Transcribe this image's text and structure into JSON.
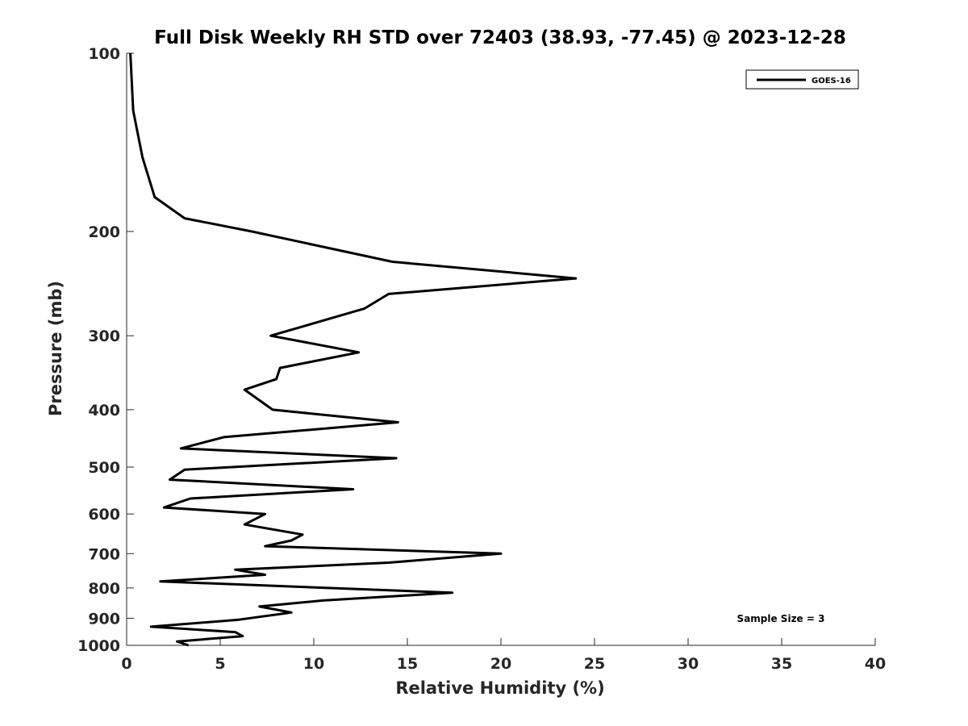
{
  "chart_data": {
    "type": "line",
    "title": "Full Disk Weekly RH STD over 72403 (38.93, -77.45) @ 2023-12-28",
    "xlabel": "Relative Humidity (%)",
    "ylabel": "Pressure (mb)",
    "xlim": [
      0,
      40
    ],
    "ylim": [
      100,
      1000
    ],
    "yscale": "log",
    "grid": false,
    "legend_position": "top-right",
    "x_ticks": [
      0,
      5,
      10,
      15,
      20,
      25,
      30,
      35,
      40
    ],
    "y_ticks": [
      100,
      200,
      300,
      400,
      500,
      600,
      700,
      800,
      900,
      1000
    ],
    "annotation": "Sample Size = 3",
    "series": [
      {
        "name": "GOES-16",
        "color": "#000000",
        "points": [
          [
            0.2,
            100
          ],
          [
            0.35,
            125
          ],
          [
            0.85,
            150
          ],
          [
            1.5,
            175
          ],
          [
            3.1,
            190
          ],
          [
            6.7,
            200
          ],
          [
            14.2,
            225
          ],
          [
            24.0,
            240
          ],
          [
            14.0,
            255
          ],
          [
            12.7,
            270
          ],
          [
            7.7,
            300
          ],
          [
            12.4,
            320
          ],
          [
            8.2,
            340
          ],
          [
            8.0,
            355
          ],
          [
            6.3,
            370
          ],
          [
            7.8,
            400
          ],
          [
            14.5,
            420
          ],
          [
            5.2,
            445
          ],
          [
            2.9,
            465
          ],
          [
            14.4,
            483
          ],
          [
            3.1,
            505
          ],
          [
            2.3,
            525
          ],
          [
            12.1,
            545
          ],
          [
            3.4,
            565
          ],
          [
            2.0,
            585
          ],
          [
            7.4,
            600
          ],
          [
            6.3,
            625
          ],
          [
            9.4,
            650
          ],
          [
            8.8,
            665
          ],
          [
            7.4,
            680
          ],
          [
            20.0,
            700
          ],
          [
            14.0,
            725
          ],
          [
            5.8,
            745
          ],
          [
            7.4,
            760
          ],
          [
            1.8,
            780
          ],
          [
            17.4,
            815
          ],
          [
            10.5,
            840
          ],
          [
            7.1,
            860
          ],
          [
            8.8,
            880
          ],
          [
            6.0,
            905
          ],
          [
            1.3,
            930
          ],
          [
            5.8,
            950
          ],
          [
            6.2,
            965
          ],
          [
            2.7,
            985
          ],
          [
            3.3,
            1000
          ]
        ]
      }
    ]
  }
}
